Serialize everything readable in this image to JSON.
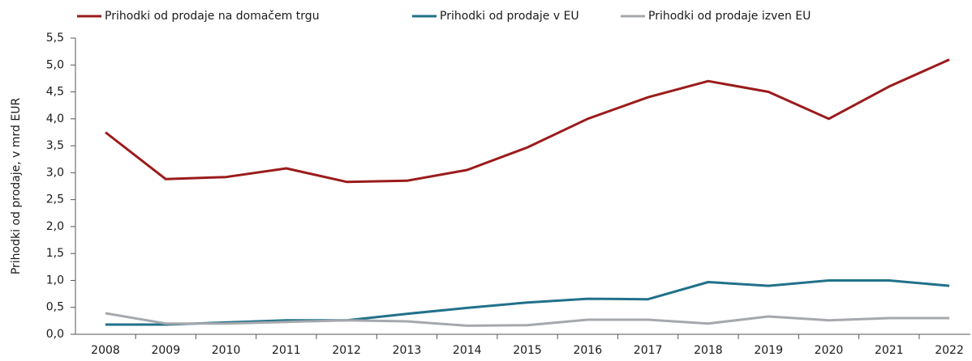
{
  "chart_data": {
    "type": "line",
    "y_label": "Prihodki od prodaje, v mrd EUR",
    "categories": [
      "2008",
      "2009",
      "2010",
      "2011",
      "2012",
      "2013",
      "2014",
      "2015",
      "2016",
      "2017",
      "2018",
      "2019",
      "2020",
      "2021",
      "2022"
    ],
    "series": [
      {
        "name": "Prihodki od prodaje na domačem trgu",
        "color": "#9b1b1b",
        "values": [
          3.75,
          2.88,
          2.92,
          3.08,
          2.83,
          2.85,
          3.05,
          3.47,
          4.0,
          4.4,
          4.7,
          4.5,
          4.0,
          4.6,
          5.1
        ]
      },
      {
        "name": "Prihodki od prodaje v EU",
        "color": "#21718a",
        "values": [
          0.18,
          0.18,
          0.22,
          0.26,
          0.26,
          0.38,
          0.49,
          0.59,
          0.66,
          0.65,
          0.97,
          0.9,
          1.0,
          1.0,
          0.9
        ]
      },
      {
        "name": "Prihodki od prodaje izven EU",
        "color": "#a5a8ad",
        "values": [
          0.39,
          0.2,
          0.2,
          0.23,
          0.26,
          0.24,
          0.16,
          0.17,
          0.27,
          0.27,
          0.2,
          0.33,
          0.26,
          0.3,
          0.3
        ]
      }
    ],
    "ylim": [
      0,
      5.5
    ],
    "yticks": [
      {
        "value": 0,
        "label": "0,0"
      },
      {
        "value": 0.5,
        "label": "0,5"
      },
      {
        "value": 1,
        "label": "1,0"
      },
      {
        "value": 1.5,
        "label": "1,5"
      },
      {
        "value": 2,
        "label": "2,0"
      },
      {
        "value": 2.5,
        "label": "2,5"
      },
      {
        "value": 3,
        "label": "3,0"
      },
      {
        "value": 3.5,
        "label": "3,5"
      },
      {
        "value": 4,
        "label": "4,0"
      },
      {
        "value": 4.5,
        "label": "4,5"
      },
      {
        "value": 5,
        "label": "5,0"
      },
      {
        "value": 5.5,
        "label": "5,5"
      }
    ],
    "legend": "top"
  }
}
